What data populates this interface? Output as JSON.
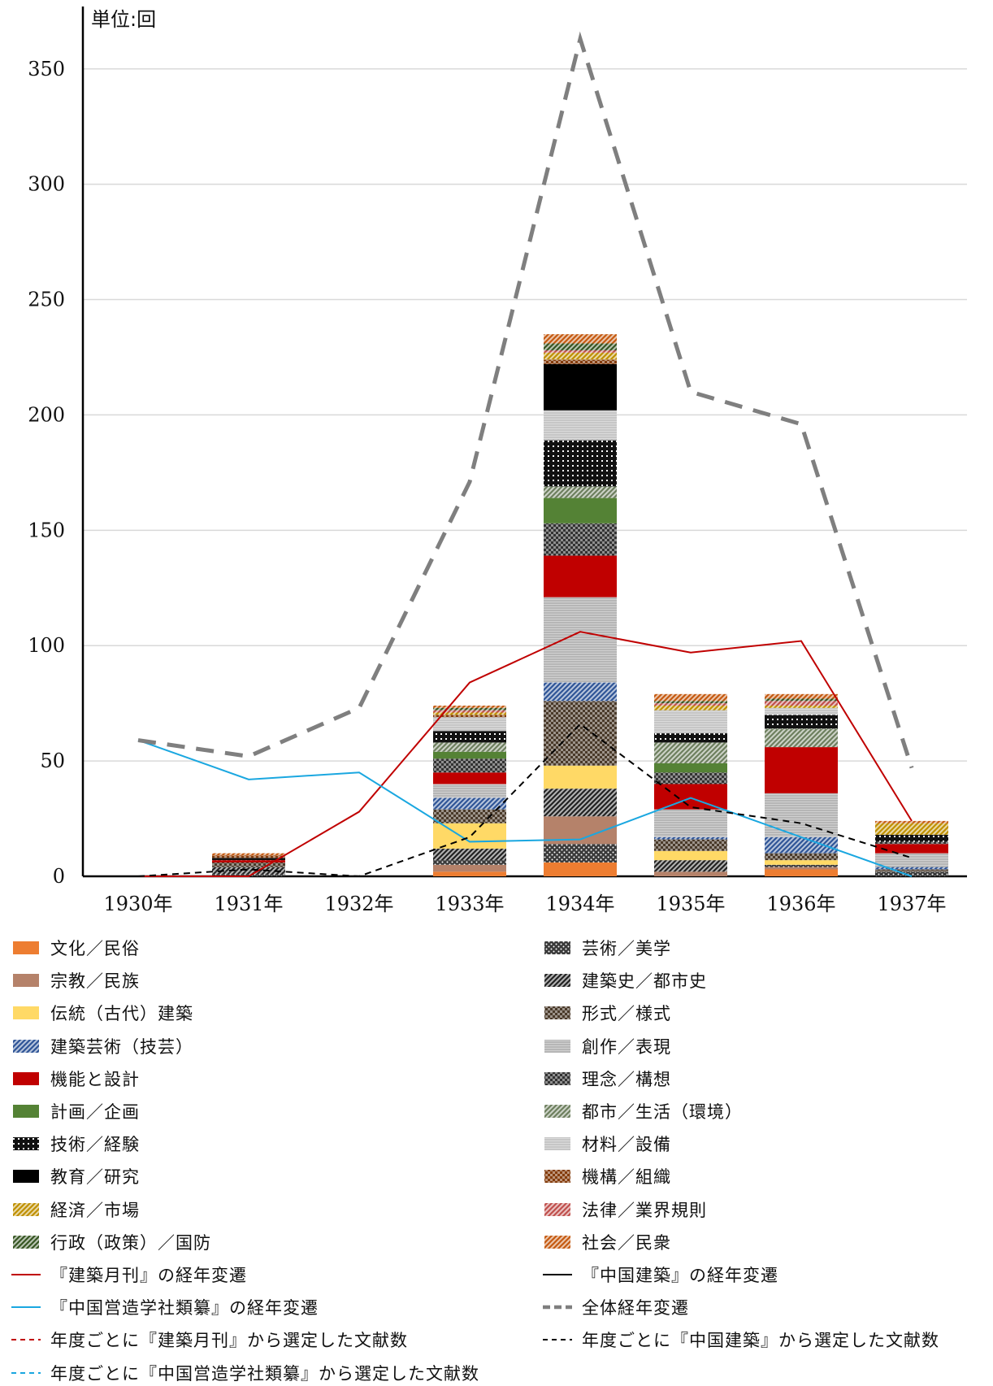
{
  "chart_data": {
    "type": "bar",
    "stacked": true,
    "unit_label": "単位:回",
    "categories": [
      "1930年",
      "1931年",
      "1932年",
      "1933年",
      "1934年",
      "1935年",
      "1936年",
      "1937年"
    ],
    "ylim": [
      0,
      370
    ],
    "yticks": [
      0,
      50,
      100,
      150,
      200,
      250,
      300,
      350
    ],
    "grid": true,
    "legend_position": "bottom",
    "series": [
      {
        "name": "文化／民俗",
        "color": "#ed7d31",
        "pattern": "solid",
        "values": [
          0,
          0,
          0,
          2,
          6,
          0,
          3,
          0
        ]
      },
      {
        "name": "宗教／民族",
        "color": "#b5826a",
        "pattern": "solid",
        "values": [
          0,
          0,
          0,
          3,
          0,
          2,
          1,
          0
        ]
      },
      {
        "name": "芸術／美学",
        "color": "#3a3a3a",
        "pattern": "dots",
        "values": [
          0,
          1,
          0,
          2,
          8,
          0,
          1,
          2
        ]
      },
      {
        "name": "建築史／都市史",
        "color": "#222222",
        "pattern": "diag",
        "values": [
          0,
          1,
          0,
          5,
          0,
          5,
          0,
          0
        ]
      },
      {
        "name": "宗教／民族",
        "color": "#b5826a",
        "pattern": "solid",
        "values": [
          0,
          0,
          0,
          0,
          12,
          0,
          0,
          0
        ]
      },
      {
        "name": "伝統（古代）建築",
        "color": "#ffd966",
        "pattern": "solid",
        "values": [
          0,
          0,
          0,
          11,
          0,
          4,
          2,
          0
        ]
      },
      {
        "name": "建築史／都市史",
        "color": "#222222",
        "pattern": "diag",
        "values": [
          0,
          2,
          0,
          0,
          12,
          0,
          0,
          0
        ]
      },
      {
        "name": "伝統（古代）建築",
        "color": "#ffd966",
        "pattern": "solid",
        "values": [
          0,
          0,
          0,
          0,
          10,
          0,
          0,
          0
        ]
      },
      {
        "name": "形式／様式",
        "color": "#4a3a2a",
        "pattern": "check",
        "values": [
          0,
          2,
          0,
          6,
          28,
          5,
          3,
          1
        ]
      },
      {
        "name": "建築芸術（技芸）",
        "color": "#2f5597",
        "pattern": "diag",
        "values": [
          0,
          0,
          0,
          5,
          8,
          1,
          7,
          1
        ]
      },
      {
        "name": "創作／表現",
        "color": "#9a9a9a",
        "pattern": "fine",
        "values": [
          0,
          0,
          0,
          6,
          37,
          12,
          19,
          6
        ]
      },
      {
        "name": "機能と設計",
        "color": "#c00000",
        "pattern": "solid",
        "values": [
          0,
          1,
          0,
          5,
          18,
          11,
          20,
          4
        ]
      },
      {
        "name": "理念／構想",
        "color": "#333333",
        "pattern": "check",
        "values": [
          0,
          0,
          0,
          6,
          14,
          5,
          0,
          1
        ]
      },
      {
        "name": "計画／企画",
        "color": "#548235",
        "pattern": "solid",
        "values": [
          0,
          0,
          0,
          3,
          11,
          4,
          0,
          0
        ]
      },
      {
        "name": "都市／生活（環境）",
        "color": "#6d7f5e",
        "pattern": "diag",
        "values": [
          0,
          0,
          0,
          4,
          5,
          9,
          8,
          0
        ]
      },
      {
        "name": "技術／経験",
        "color": "#111111",
        "pattern": "grid",
        "values": [
          0,
          1,
          0,
          5,
          20,
          4,
          6,
          3
        ]
      },
      {
        "name": "材料／設備",
        "color": "#b0b0b0",
        "pattern": "fine",
        "values": [
          0,
          0,
          0,
          6,
          13,
          10,
          3,
          0
        ]
      },
      {
        "name": "教育／研究",
        "color": "#000000",
        "pattern": "solid",
        "values": [
          0,
          0,
          0,
          0,
          20,
          0,
          0,
          0
        ]
      },
      {
        "name": "機構／組織",
        "color": "#843c0c",
        "pattern": "check",
        "values": [
          0,
          1,
          0,
          1,
          2,
          0,
          0,
          0
        ]
      },
      {
        "name": "経済／市場",
        "color": "#bf9000",
        "pattern": "diag",
        "values": [
          0,
          0,
          0,
          1,
          3,
          2,
          1,
          5
        ]
      },
      {
        "name": "法律／業界規則",
        "color": "#c0504d",
        "pattern": "diag",
        "values": [
          0,
          0,
          0,
          1,
          1,
          1,
          2,
          0
        ]
      },
      {
        "name": "行政（政策）／国防",
        "color": "#375623",
        "pattern": "diag",
        "values": [
          0,
          0,
          0,
          1,
          3,
          1,
          1,
          0
        ]
      },
      {
        "name": "社会／民衆",
        "color": "#c55a11",
        "pattern": "diag",
        "values": [
          0,
          1,
          0,
          1,
          4,
          3,
          2,
          1
        ]
      }
    ],
    "lines": [
      {
        "name": "『建築月刊』の経年変遷",
        "color": "#c00000",
        "style": "solid",
        "values": [
          0,
          0,
          28,
          84,
          106,
          97,
          102,
          24
        ]
      },
      {
        "name": "『中国建築』の経年変遷",
        "color": "#000000",
        "style": "solid",
        "values": [
          null,
          null,
          null,
          null,
          null,
          null,
          null,
          null
        ]
      },
      {
        "name": "『中国営造学社類纂』の経年変遷",
        "color": "#1aa7e0",
        "style": "solid",
        "values": [
          59,
          42,
          45,
          15,
          16,
          34,
          17,
          0
        ]
      },
      {
        "name": "全体経年変遷",
        "color": "#7f7f7f",
        "style": "bigdash",
        "values": [
          59,
          52,
          73,
          171,
          363,
          210,
          196,
          47
        ]
      },
      {
        "name": "年度ごとに『中国建築』から選定した文献数",
        "color": "#000000",
        "style": "dash",
        "values": [
          0,
          3,
          0,
          17,
          66,
          30,
          23,
          8
        ]
      }
    ],
    "legend": [
      {
        "label": "文化／民俗",
        "type": "swatch",
        "color": "#ed7d31",
        "pattern": "solid"
      },
      {
        "label": "芸術／美学",
        "type": "swatch",
        "color": "#3a3a3a",
        "pattern": "dots"
      },
      {
        "label": "宗教／民族",
        "type": "swatch",
        "color": "#b5826a",
        "pattern": "solid"
      },
      {
        "label": "建築史／都市史",
        "type": "swatch",
        "color": "#222222",
        "pattern": "diag"
      },
      {
        "label": "伝統（古代）建築",
        "type": "swatch",
        "color": "#ffd966",
        "pattern": "solid"
      },
      {
        "label": "形式／様式",
        "type": "swatch",
        "color": "#4a3a2a",
        "pattern": "check"
      },
      {
        "label": "建築芸術（技芸）",
        "type": "swatch",
        "color": "#2f5597",
        "pattern": "diag"
      },
      {
        "label": "創作／表現",
        "type": "swatch",
        "color": "#9a9a9a",
        "pattern": "fine"
      },
      {
        "label": "機能と設計",
        "type": "swatch",
        "color": "#c00000",
        "pattern": "solid"
      },
      {
        "label": "理念／構想",
        "type": "swatch",
        "color": "#333333",
        "pattern": "check"
      },
      {
        "label": "計画／企画",
        "type": "swatch",
        "color": "#548235",
        "pattern": "solid"
      },
      {
        "label": "都市／生活（環境）",
        "type": "swatch",
        "color": "#6d7f5e",
        "pattern": "diag"
      },
      {
        "label": "技術／経験",
        "type": "swatch",
        "color": "#111111",
        "pattern": "grid"
      },
      {
        "label": "材料／設備",
        "type": "swatch",
        "color": "#b0b0b0",
        "pattern": "fine"
      },
      {
        "label": "教育／研究",
        "type": "swatch",
        "color": "#000000",
        "pattern": "solid"
      },
      {
        "label": "機構／組織",
        "type": "swatch",
        "color": "#843c0c",
        "pattern": "check"
      },
      {
        "label": "経済／市場",
        "type": "swatch",
        "color": "#bf9000",
        "pattern": "diag"
      },
      {
        "label": "法律／業界規則",
        "type": "swatch",
        "color": "#c0504d",
        "pattern": "diag"
      },
      {
        "label": "行政（政策）／国防",
        "type": "swatch",
        "color": "#375623",
        "pattern": "diag"
      },
      {
        "label": "社会／民衆",
        "type": "swatch",
        "color": "#c55a11",
        "pattern": "diag"
      },
      {
        "label": "『建築月刊』の経年変遷",
        "type": "line",
        "color": "#c00000",
        "style": "solid"
      },
      {
        "label": "『中国建築』の経年変遷",
        "type": "line",
        "color": "#000000",
        "style": "solid"
      },
      {
        "label": "『中国営造学社類纂』の経年変遷",
        "type": "line",
        "color": "#1aa7e0",
        "style": "solid"
      },
      {
        "label": "全体経年変遷",
        "type": "line",
        "color": "#7f7f7f",
        "style": "bigdash"
      },
      {
        "label": "年度ごとに『建築月刊』から選定した文献数",
        "type": "line",
        "color": "#c00000",
        "style": "dash"
      },
      {
        "label": "年度ごとに『中国建築』から選定した文献数",
        "type": "line",
        "color": "#000000",
        "style": "dash"
      },
      {
        "label": "年度ごとに『中国営造学社類纂』から選定した文献数",
        "type": "line",
        "color": "#1aa7e0",
        "style": "dash"
      }
    ]
  }
}
